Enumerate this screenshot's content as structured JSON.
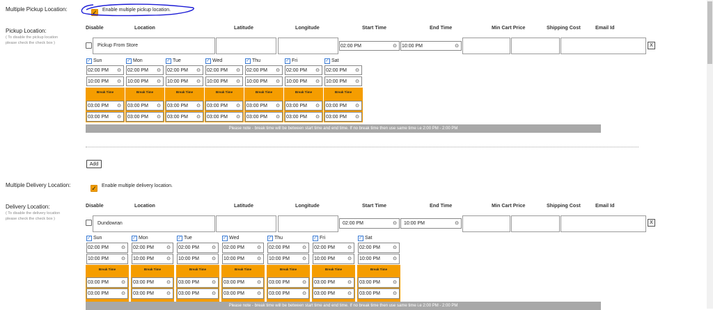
{
  "pickup": {
    "section_label": "Multiple Pickup Location:",
    "enable_label": "Enable multiple pickup location.",
    "loc_label": "Pickup Location:",
    "loc_sub1": "( To disable the pickup location",
    "loc_sub2": "please check the check box )",
    "location": "Pickup From Store",
    "start_time": "02:00 PM",
    "end_time": "10:00 PM",
    "remove": "X"
  },
  "delivery": {
    "section_label": "Multiple Delivery Location:",
    "enable_label": "Enable multiple delivery location.",
    "loc_label": "Delivery Location:",
    "loc_sub1": "( To disable the delivery location",
    "loc_sub2": "please check the check box )",
    "location": "Dundowran",
    "start_time": "02:00 PM",
    "end_time": "10:00 PM",
    "remove": "X"
  },
  "headers": {
    "disable": "Disable",
    "location": "Location",
    "latitude": "Latitude",
    "longitude": "Longitude",
    "start_time": "Start Time",
    "end_time": "End Time",
    "min_cart": "Min Cart Price",
    "shipping": "Shipping Cost",
    "email": "Email Id"
  },
  "days": [
    "Sun",
    "Mon",
    "Tue",
    "Wed",
    "Thu",
    "Fri",
    "Sat"
  ],
  "day_open": "02:00 PM",
  "day_close": "10:00 PM",
  "break_label": "Break Time",
  "break_start": "03:00 PM",
  "break_end": "03:00 PM",
  "clock_glyph": "⊙",
  "check_glyph": "✓",
  "note": "Please note - break time will be between start time and end time. If no break time then use same time i.e 2:00 PM - 2:00 PM",
  "add_label": "Add",
  "accent": "#f59d00"
}
